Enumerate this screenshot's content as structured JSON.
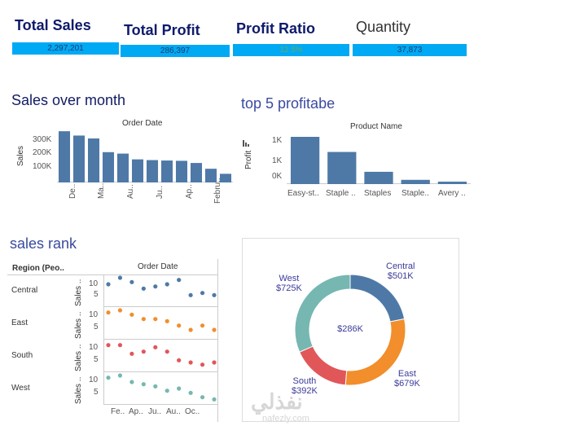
{
  "kpis": [
    {
      "title": "Total Sales",
      "value": "2,297,201"
    },
    {
      "title": "Total Profit",
      "value": "286,397"
    },
    {
      "title": "Profit Ratio",
      "value": "12.5%"
    },
    {
      "title": "Quantity",
      "value": "37,873"
    }
  ],
  "sales_over_month": {
    "title": "Sales over month",
    "header": "Order Date",
    "ylabel": "Sales",
    "yticks": [
      "300K",
      "200K",
      "100K"
    ],
    "xlabels": [
      "De..",
      "Ma..",
      "Au..",
      "Ju..",
      "Ap..",
      "Febru.."
    ]
  },
  "top5": {
    "title": "top 5 profitabe",
    "header": "Product Name",
    "ylabel": "Profit",
    "yticks": [
      "1K",
      "1K",
      "0K"
    ],
    "xlabels": [
      "Easy-st..",
      "Staple ..",
      "Staples",
      "Staple..",
      "Avery .."
    ]
  },
  "sales_rank": {
    "title": "sales rank",
    "region_header": "Region (Peo..",
    "date_header": "Order Date",
    "rows": [
      {
        "label": "Central",
        "measure": "Sales ..",
        "ticks": [
          "10",
          "5"
        ]
      },
      {
        "label": "East",
        "measure": "Sales ..",
        "ticks": [
          "10",
          "5"
        ]
      },
      {
        "label": "South",
        "measure": "Sales ..",
        "ticks": [
          "10",
          "5"
        ]
      },
      {
        "label": "West",
        "measure": "Sales ..",
        "ticks": [
          "10",
          "5"
        ]
      }
    ],
    "xlabels": [
      "Fe..",
      "Ap..",
      "Ju..",
      "Au..",
      "Oc.."
    ]
  },
  "donut": {
    "center": "$286K",
    "segments": [
      {
        "name": "Central",
        "value": "$501K",
        "color": "#4e79a7"
      },
      {
        "name": "East",
        "value": "$679K",
        "color": "#f28e2b"
      },
      {
        "name": "South",
        "value": "$392K",
        "color": "#e15759"
      },
      {
        "name": "West",
        "value": "$725K",
        "color": "#76b7b2"
      }
    ]
  },
  "watermark": {
    "logo": "نفذلي",
    "url": "nafezly.com"
  },
  "chart_data": [
    {
      "type": "bar",
      "title": "Sales over month",
      "xlabel": "Order Date",
      "ylabel": "Sales",
      "ylim": [
        0,
        350000
      ],
      "values": [
        355000,
        325000,
        305000,
        210000,
        200000,
        160000,
        155000,
        152000,
        150000,
        135000,
        95000,
        60000
      ],
      "color": "#4e79a7"
    },
    {
      "type": "bar",
      "title": "top 5 profitabe",
      "xlabel": "Product Name",
      "ylabel": "Profit",
      "categories": [
        "Easy-st..",
        "Staple ..",
        "Staples",
        "Staple..",
        "Avery .."
      ],
      "values": [
        1.0,
        0.68,
        0.26,
        0.09,
        0.04
      ],
      "color": "#4e79a7"
    },
    {
      "type": "scatter",
      "title": "sales rank",
      "xlabel": "Order Date",
      "ylim": [
        0,
        12
      ],
      "series": [
        {
          "name": "Central",
          "color": "#4e79a7",
          "values": [
            9,
            12,
            10,
            7,
            8,
            9,
            11,
            4,
            5,
            4
          ]
        },
        {
          "name": "East",
          "color": "#f28e2b",
          "values": [
            11,
            12,
            10,
            8,
            8,
            7,
            5,
            3,
            5,
            3
          ]
        },
        {
          "name": "South",
          "color": "#e15759",
          "values": [
            11,
            11,
            7,
            8,
            10,
            8,
            4,
            3,
            2,
            3
          ]
        },
        {
          "name": "West",
          "color": "#76b7b2",
          "values": [
            11,
            12,
            9,
            8,
            7,
            5,
            6,
            4,
            2,
            1
          ]
        }
      ]
    },
    {
      "type": "pie",
      "categories": [
        "Central",
        "East",
        "South",
        "West"
      ],
      "values": [
        501,
        679,
        392,
        725
      ],
      "center_label": "$286K"
    }
  ]
}
